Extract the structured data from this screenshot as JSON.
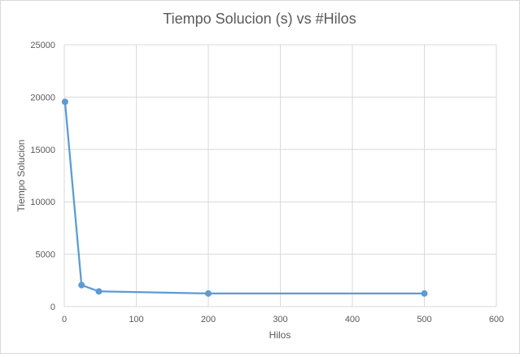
{
  "chart_data": {
    "type": "scatter",
    "title": "Tiempo Solucion (s) vs #Hilos",
    "xlabel": "Hilos",
    "ylabel": "Tiempo Solucion",
    "xlim": [
      0,
      600
    ],
    "ylim": [
      0,
      25000
    ],
    "xticks": [
      0,
      100,
      200,
      300,
      400,
      500,
      600
    ],
    "yticks": [
      0,
      5000,
      10000,
      15000,
      20000,
      25000
    ],
    "grid": true,
    "legend": "none",
    "series": [
      {
        "name": "Tiempo Solucion",
        "color": "#5b9bd5",
        "x": [
          1,
          24,
          48,
          200,
          500
        ],
        "y": [
          19550,
          2050,
          1450,
          1250,
          1250
        ]
      }
    ]
  }
}
